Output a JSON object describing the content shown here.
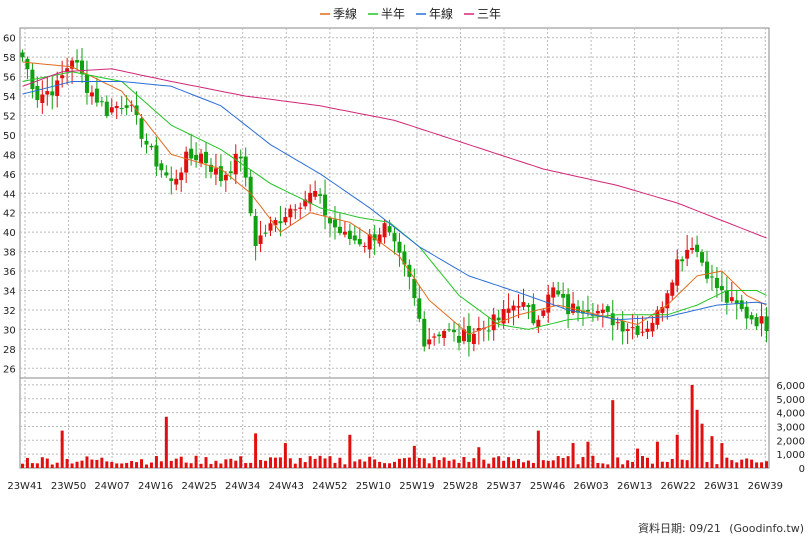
{
  "chart_data": {
    "type": "candlestick",
    "legend": [
      {
        "name": "季線",
        "color": "#e06b1e"
      },
      {
        "name": "半年",
        "color": "#22c422"
      },
      {
        "name": "年線",
        "color": "#2b6fd6"
      },
      {
        "name": "三年",
        "color": "#d0287a"
      }
    ],
    "price_axis": {
      "ylim": [
        25,
        61
      ],
      "ticks": [
        26,
        28,
        30,
        32,
        34,
        36,
        38,
        40,
        42,
        44,
        46,
        48,
        50,
        52,
        54,
        56,
        58,
        60
      ]
    },
    "volume_axis": {
      "ylim": [
        0,
        6500
      ],
      "ticks": [
        0,
        1000,
        2000,
        3000,
        4000,
        5000,
        6000
      ],
      "tick_labels": [
        "0",
        "1,000",
        "2,000",
        "3,000",
        "4,000",
        "5,000",
        "6,000"
      ]
    },
    "x_labels": [
      "23W41",
      "23W50",
      "24W07",
      "24W16",
      "24W25",
      "24W34",
      "24W43",
      "24W52",
      "25W10",
      "25W19",
      "25W28",
      "25W37",
      "25W46",
      "26W03",
      "26W13",
      "26W22",
      "26W31",
      "26W39"
    ],
    "candle_colors": {
      "up": "#e01010",
      "down": "#10a010"
    },
    "volume_color": "#e01010",
    "series": {
      "close_keypoints": [
        [
          0,
          58
        ],
        [
          3,
          54
        ],
        [
          7,
          55
        ],
        [
          10,
          58
        ],
        [
          13,
          55
        ],
        [
          17,
          52.5
        ],
        [
          21,
          53.5
        ],
        [
          26,
          48
        ],
        [
          30,
          45
        ],
        [
          33,
          47.5
        ],
        [
          36,
          48
        ],
        [
          40,
          45.5
        ],
        [
          44,
          48
        ],
        [
          47,
          39
        ],
        [
          51,
          41
        ],
        [
          55,
          43
        ],
        [
          59,
          44
        ],
        [
          62,
          41
        ],
        [
          65,
          39.5
        ],
        [
          69,
          39
        ],
        [
          73,
          40.5
        ],
        [
          78,
          35
        ],
        [
          81,
          29
        ],
        [
          85,
          30
        ],
        [
          88,
          29
        ],
        [
          92,
          30
        ],
        [
          96,
          31
        ],
        [
          100,
          33
        ],
        [
          103,
          31
        ],
        [
          107,
          34
        ],
        [
          110,
          32
        ],
        [
          114,
          32.5
        ],
        [
          117,
          31.5
        ],
        [
          121,
          30.5
        ],
        [
          125,
          30
        ],
        [
          128,
          31.5
        ],
        [
          132,
          37
        ],
        [
          135,
          39
        ],
        [
          139,
          35
        ],
        [
          142,
          33
        ],
        [
          146,
          31.5
        ],
        [
          150,
          30.5
        ]
      ],
      "ma_quarter_keypoints": [
        [
          0,
          57.5
        ],
        [
          10,
          57
        ],
        [
          20,
          54.5
        ],
        [
          30,
          48
        ],
        [
          40,
          46.5
        ],
        [
          46,
          44
        ],
        [
          52,
          40
        ],
        [
          58,
          42
        ],
        [
          66,
          41
        ],
        [
          72,
          39
        ],
        [
          76,
          37.5
        ],
        [
          82,
          33
        ],
        [
          90,
          29.5
        ],
        [
          100,
          31.5
        ],
        [
          108,
          32.5
        ],
        [
          116,
          31.5
        ],
        [
          124,
          30.5
        ],
        [
          130,
          32.5
        ],
        [
          136,
          35.5
        ],
        [
          141,
          36
        ],
        [
          146,
          33.5
        ],
        [
          150,
          32.5
        ]
      ],
      "ma_half_keypoints": [
        [
          0,
          55.5
        ],
        [
          10,
          56.5
        ],
        [
          20,
          55.5
        ],
        [
          30,
          51
        ],
        [
          40,
          48.5
        ],
        [
          50,
          45
        ],
        [
          60,
          42.5
        ],
        [
          68,
          41.5
        ],
        [
          74,
          41
        ],
        [
          80,
          38.5
        ],
        [
          88,
          33.5
        ],
        [
          96,
          30.5
        ],
        [
          102,
          30
        ],
        [
          110,
          31
        ],
        [
          120,
          31.5
        ],
        [
          130,
          31.5
        ],
        [
          136,
          32.5
        ],
        [
          142,
          34
        ],
        [
          148,
          34
        ],
        [
          150,
          33.5
        ]
      ],
      "ma_year_keypoints": [
        [
          0,
          54.2
        ],
        [
          10,
          55.5
        ],
        [
          20,
          55.5
        ],
        [
          30,
          55
        ],
        [
          40,
          53
        ],
        [
          50,
          49
        ],
        [
          60,
          46
        ],
        [
          70,
          42.5
        ],
        [
          80,
          38.5
        ],
        [
          90,
          35.5
        ],
        [
          100,
          33.8
        ],
        [
          110,
          32
        ],
        [
          120,
          31
        ],
        [
          130,
          31.3
        ],
        [
          140,
          32.5
        ],
        [
          148,
          32.8
        ],
        [
          150,
          32.6
        ]
      ],
      "ma_3yr_keypoints": [
        [
          0,
          55
        ],
        [
          8,
          56.5
        ],
        [
          18,
          56.8
        ],
        [
          30,
          55.5
        ],
        [
          45,
          54
        ],
        [
          60,
          53
        ],
        [
          75,
          51.5
        ],
        [
          90,
          49
        ],
        [
          105,
          46.5
        ],
        [
          120,
          44.8
        ],
        [
          132,
          43
        ],
        [
          142,
          41
        ],
        [
          150,
          39.4
        ]
      ],
      "volume_spikes": [
        [
          8,
          2700
        ],
        [
          29,
          3700
        ],
        [
          47,
          2500
        ],
        [
          53,
          1800
        ],
        [
          66,
          2400
        ],
        [
          79,
          1600
        ],
        [
          92,
          1500
        ],
        [
          104,
          2700
        ],
        [
          111,
          1800
        ],
        [
          114,
          1900
        ],
        [
          119,
          4900
        ],
        [
          124,
          1400
        ],
        [
          128,
          1900
        ],
        [
          132,
          2400
        ],
        [
          135,
          6000
        ],
        [
          136,
          4200
        ],
        [
          137,
          3200
        ],
        [
          139,
          2300
        ],
        [
          141,
          1800
        ]
      ]
    }
  },
  "footer": {
    "date_label": "資料日期: 09/21",
    "source": "(Goodinfo.tw)"
  }
}
